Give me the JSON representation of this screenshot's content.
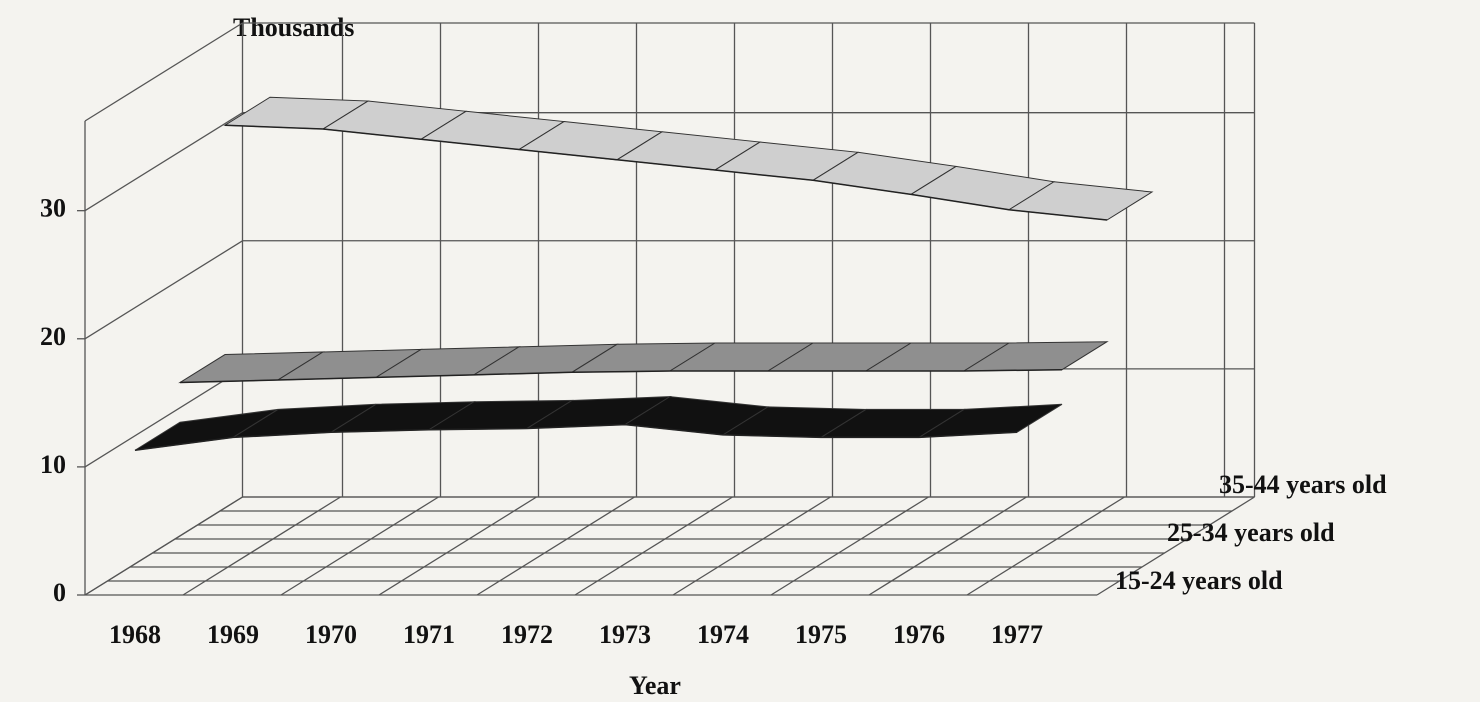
{
  "chart_data": {
    "type": "ribbon3d",
    "y_axis_label": "Thousands",
    "x_axis_label": "Year",
    "categories": [
      "1968",
      "1969",
      "1970",
      "1971",
      "1972",
      "1973",
      "1974",
      "1975",
      "1976",
      "1977"
    ],
    "series": [
      {
        "name": "15-24 years old",
        "color": "#111111",
        "values": [
          11.3,
          12.3,
          12.7,
          12.9,
          13.0,
          13.3,
          12.5,
          12.3,
          12.3,
          12.7
        ]
      },
      {
        "name": "25-34 years old",
        "color": "#8f8f8f",
        "values": [
          14.4,
          14.6,
          14.8,
          15.0,
          15.2,
          15.3,
          15.3,
          15.3,
          15.3,
          15.4
        ]
      },
      {
        "name": "35-44 years old",
        "color": "#cfcfcf",
        "values": [
          32.3,
          32.0,
          31.2,
          30.4,
          29.6,
          28.8,
          28.0,
          26.9,
          25.7,
          24.9
        ]
      }
    ],
    "ylim": [
      0,
      37
    ],
    "yticks": [
      0,
      10,
      20,
      30
    ],
    "grid": true
  }
}
